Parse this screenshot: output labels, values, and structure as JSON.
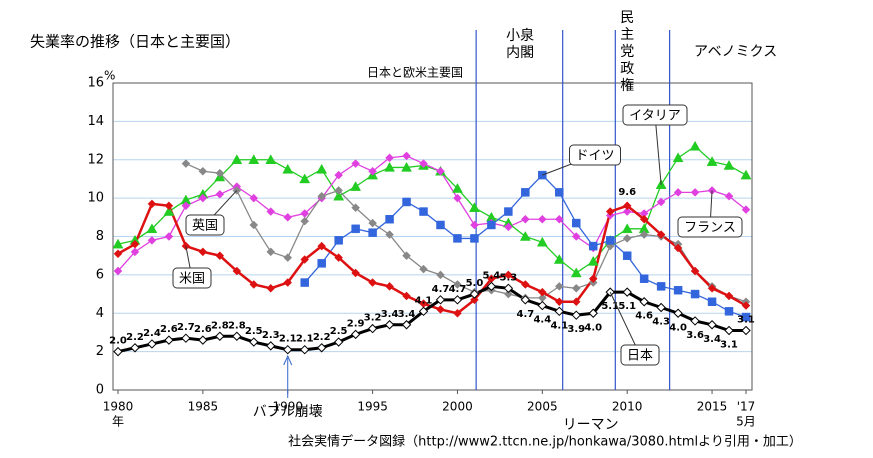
{
  "chart_data": {
    "type": "line",
    "title": "失業率の推移（日本と主要国）",
    "subtitle": "日本と欧米主要国",
    "source": "社会実情データ図録（http://www2.ttcn.ne.jp/honkawa/3080.htmlより引用・加工）",
    "y_unit": "%",
    "x_unit": "年",
    "x_last_note": "5月",
    "x": [
      1980,
      1981,
      1982,
      1983,
      1984,
      1985,
      1986,
      1987,
      1988,
      1989,
      1990,
      1991,
      1992,
      1993,
      1994,
      1995,
      1996,
      1997,
      1998,
      1999,
      2000,
      2001,
      2002,
      2003,
      2004,
      2005,
      2006,
      2007,
      2008,
      2009,
      2010,
      2011,
      2012,
      2013,
      2014,
      2015,
      2016,
      2017
    ],
    "xlim": [
      1980,
      2017
    ],
    "xticks": [
      1980,
      1985,
      1990,
      1995,
      2000,
      2005,
      2010,
      2015,
      {
        "value": 2017,
        "label": "'17"
      }
    ],
    "ylim": [
      0,
      16
    ],
    "yticks": [
      0,
      2,
      4,
      6,
      8,
      10,
      12,
      14,
      16
    ],
    "grid": true,
    "series": [
      {
        "name": "イタリア",
        "color": "#22cc22",
        "marker": "triangle",
        "values": [
          7.6,
          7.8,
          8.4,
          9.3,
          9.9,
          10.2,
          11.1,
          12.0,
          12.0,
          12.0,
          11.5,
          11.0,
          11.5,
          10.1,
          10.6,
          11.2,
          11.6,
          11.6,
          11.7,
          11.4,
          10.5,
          9.5,
          9.0,
          8.7,
          8.0,
          7.7,
          6.8,
          6.1,
          6.7,
          7.8,
          8.4,
          8.4,
          10.7,
          12.1,
          12.7,
          11.9,
          11.7,
          11.2
        ]
      },
      {
        "name": "フランス",
        "color": "#e040e0",
        "marker": "diamond",
        "values": [
          6.2,
          7.2,
          7.8,
          8.0,
          9.6,
          10.0,
          10.2,
          10.6,
          10.0,
          9.3,
          9.0,
          9.2,
          10.0,
          11.2,
          11.8,
          11.4,
          12.1,
          12.2,
          11.8,
          11.4,
          10.0,
          8.6,
          8.7,
          8.5,
          8.9,
          8.9,
          8.9,
          8.0,
          7.4,
          9.1,
          9.3,
          9.2,
          9.8,
          10.3,
          10.3,
          10.4,
          10.1,
          9.4
        ]
      },
      {
        "name": "英国",
        "color": "#888888",
        "marker": "diamond",
        "values": [
          null,
          null,
          null,
          null,
          11.8,
          11.4,
          11.3,
          10.4,
          8.6,
          7.2,
          6.9,
          8.8,
          10.1,
          10.4,
          9.5,
          8.7,
          8.1,
          7.0,
          6.3,
          6.0,
          5.5,
          5.1,
          5.2,
          5.0,
          4.8,
          4.8,
          5.4,
          5.3,
          5.6,
          7.5,
          7.9,
          8.1,
          8.0,
          7.6,
          6.2,
          5.4,
          4.9,
          4.6
        ]
      },
      {
        "name": "ドイツ",
        "color": "#3366dd",
        "marker": "square",
        "values": [
          null,
          null,
          null,
          null,
          null,
          null,
          null,
          null,
          null,
          null,
          null,
          5.6,
          6.6,
          7.8,
          8.4,
          8.2,
          8.9,
          9.8,
          9.3,
          8.6,
          7.9,
          7.9,
          8.6,
          9.3,
          10.3,
          11.2,
          10.3,
          8.7,
          7.5,
          7.8,
          7.0,
          5.8,
          5.4,
          5.2,
          5.0,
          4.6,
          4.1,
          3.8
        ]
      },
      {
        "name": "米国",
        "color": "#dd1111",
        "marker": "diamond",
        "values": [
          7.1,
          7.6,
          9.7,
          9.6,
          7.5,
          7.2,
          7.0,
          6.2,
          5.5,
          5.3,
          5.6,
          6.8,
          7.5,
          6.9,
          6.1,
          5.6,
          5.4,
          4.9,
          4.5,
          4.2,
          4.0,
          4.7,
          5.8,
          6.0,
          5.5,
          5.1,
          4.6,
          4.6,
          5.8,
          9.3,
          9.6,
          8.9,
          8.1,
          7.4,
          6.2,
          5.3,
          4.9,
          4.4
        ],
        "value_labels": [
          null,
          null,
          null,
          null,
          null,
          null,
          null,
          null,
          null,
          null,
          null,
          null,
          null,
          null,
          null,
          null,
          null,
          null,
          null,
          null,
          null,
          null,
          null,
          null,
          null,
          null,
          null,
          null,
          null,
          null,
          "9.6",
          null,
          null,
          null,
          null,
          null,
          null,
          null
        ]
      },
      {
        "name": "日本",
        "color": "#000000",
        "marker": "open-diamond",
        "values": [
          2.0,
          2.2,
          2.4,
          2.6,
          2.7,
          2.6,
          2.8,
          2.8,
          2.5,
          2.3,
          2.1,
          2.1,
          2.2,
          2.5,
          2.9,
          3.2,
          3.4,
          3.4,
          4.1,
          4.7,
          4.7,
          5.0,
          5.4,
          5.3,
          4.7,
          4.4,
          4.1,
          3.9,
          4.0,
          5.1,
          5.1,
          4.6,
          4.3,
          4.0,
          3.6,
          3.4,
          3.1,
          3.1
        ],
        "value_labels": [
          "2.0",
          "2.2",
          "2.4",
          "2.6",
          "2.7",
          "2.6",
          "2.8",
          "2.8",
          "2.5",
          "2.3",
          "2.1",
          "2.1",
          "2.2",
          "2.5",
          "2.9",
          "3.2",
          "3.4",
          "3.4",
          "4.1",
          "4.7",
          "4.7",
          "5.0",
          "5.4",
          "5.3",
          "4.7",
          "4.4",
          "4.1",
          "3.9",
          "4.0",
          "5.1",
          "5.1",
          "4.6",
          "4.3",
          "4.0",
          "3.6",
          "3.4",
          "3.1",
          "3.1"
        ]
      }
    ],
    "events": [
      {
        "label": "バブル崩壊",
        "x": 1990,
        "kind": "arrow"
      },
      {
        "label": "小泉\n内閣",
        "x": 2001.1,
        "kind": "line"
      },
      {
        "label": "リーマン",
        "x": 2006.2,
        "kind": "line"
      },
      {
        "label": "民\n主\n党\n政\n権",
        "x": 2009.3,
        "kind": "line"
      },
      {
        "label": "アベノミクス",
        "x": 2012.5,
        "kind": "line"
      }
    ]
  }
}
